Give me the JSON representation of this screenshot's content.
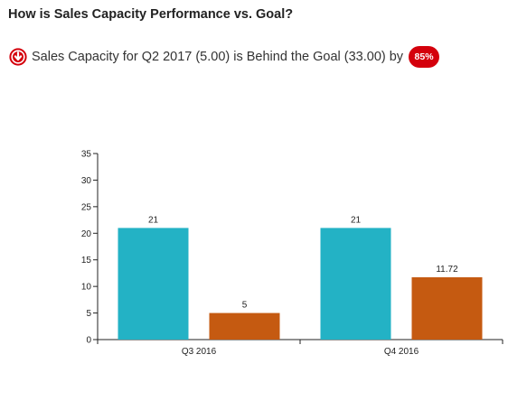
{
  "header": {
    "title": "How is Sales Capacity Performance vs. Goal?"
  },
  "summary": {
    "text": "Sales Capacity for Q2 2017 (5.00) is Behind the Goal (33.00) by",
    "badge": "85%",
    "icon": "arrow-down-circle-icon",
    "badge_color": "#d4000c"
  },
  "chart_data": {
    "type": "bar",
    "categories": [
      "Q3 2016",
      "Q4 2016"
    ],
    "series": [
      {
        "values": [
          21,
          21
        ],
        "labels": [
          "21",
          "21"
        ],
        "color": "#23b2c5"
      },
      {
        "values": [
          5,
          11.72
        ],
        "labels": [
          "5",
          "11.72"
        ],
        "color": "#c55a11"
      }
    ],
    "ylim": [
      0,
      35
    ],
    "yticks": [
      0,
      5,
      10,
      15,
      20,
      25,
      30,
      35
    ],
    "grid": false,
    "legend": "none"
  }
}
